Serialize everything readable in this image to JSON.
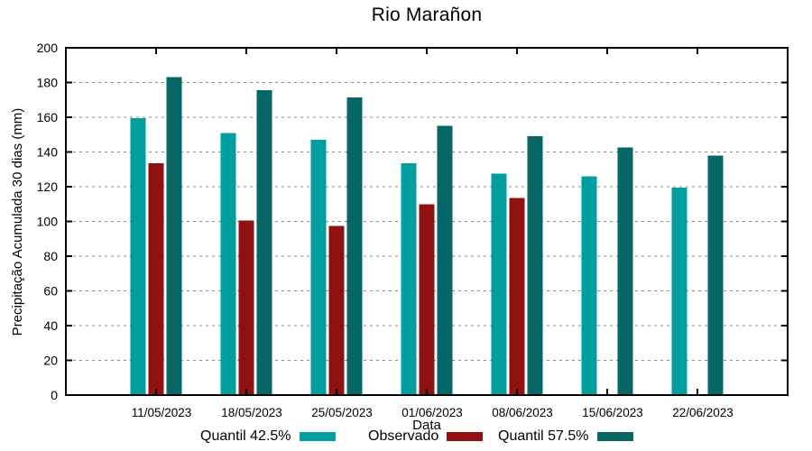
{
  "chart_data": {
    "type": "bar",
    "title": "Rio Marañon",
    "xlabel": "Data",
    "ylabel": "Precipitação Acumulada 30 dias (mm)",
    "categories": [
      "11/05/2023",
      "18/05/2023",
      "25/05/2023",
      "01/06/2023",
      "08/06/2023",
      "15/06/2023",
      "22/06/2023"
    ],
    "series": [
      {
        "name": "Quantil 42.5%",
        "color": "#009e9e",
        "values": [
          159.5,
          151,
          147,
          133.5,
          127.5,
          126,
          119.5
        ]
      },
      {
        "name": "Observado",
        "color": "#8f1111",
        "values": [
          133.5,
          100.5,
          97.5,
          110,
          113.5,
          null,
          null
        ]
      },
      {
        "name": "Quantil 57.5%",
        "color": "#066666",
        "values": [
          183,
          175.5,
          171.5,
          155,
          149,
          142.5,
          138
        ]
      }
    ],
    "ylim": [
      0,
      200
    ],
    "yticks": [
      0,
      20,
      40,
      60,
      80,
      100,
      120,
      140,
      160,
      180,
      200
    ],
    "grid": true,
    "grid_color": "#8a8a8a",
    "axis_color": "#000000",
    "legend_position": "bottom",
    "legend_left_offsets": [
      222,
      408,
      552
    ]
  }
}
